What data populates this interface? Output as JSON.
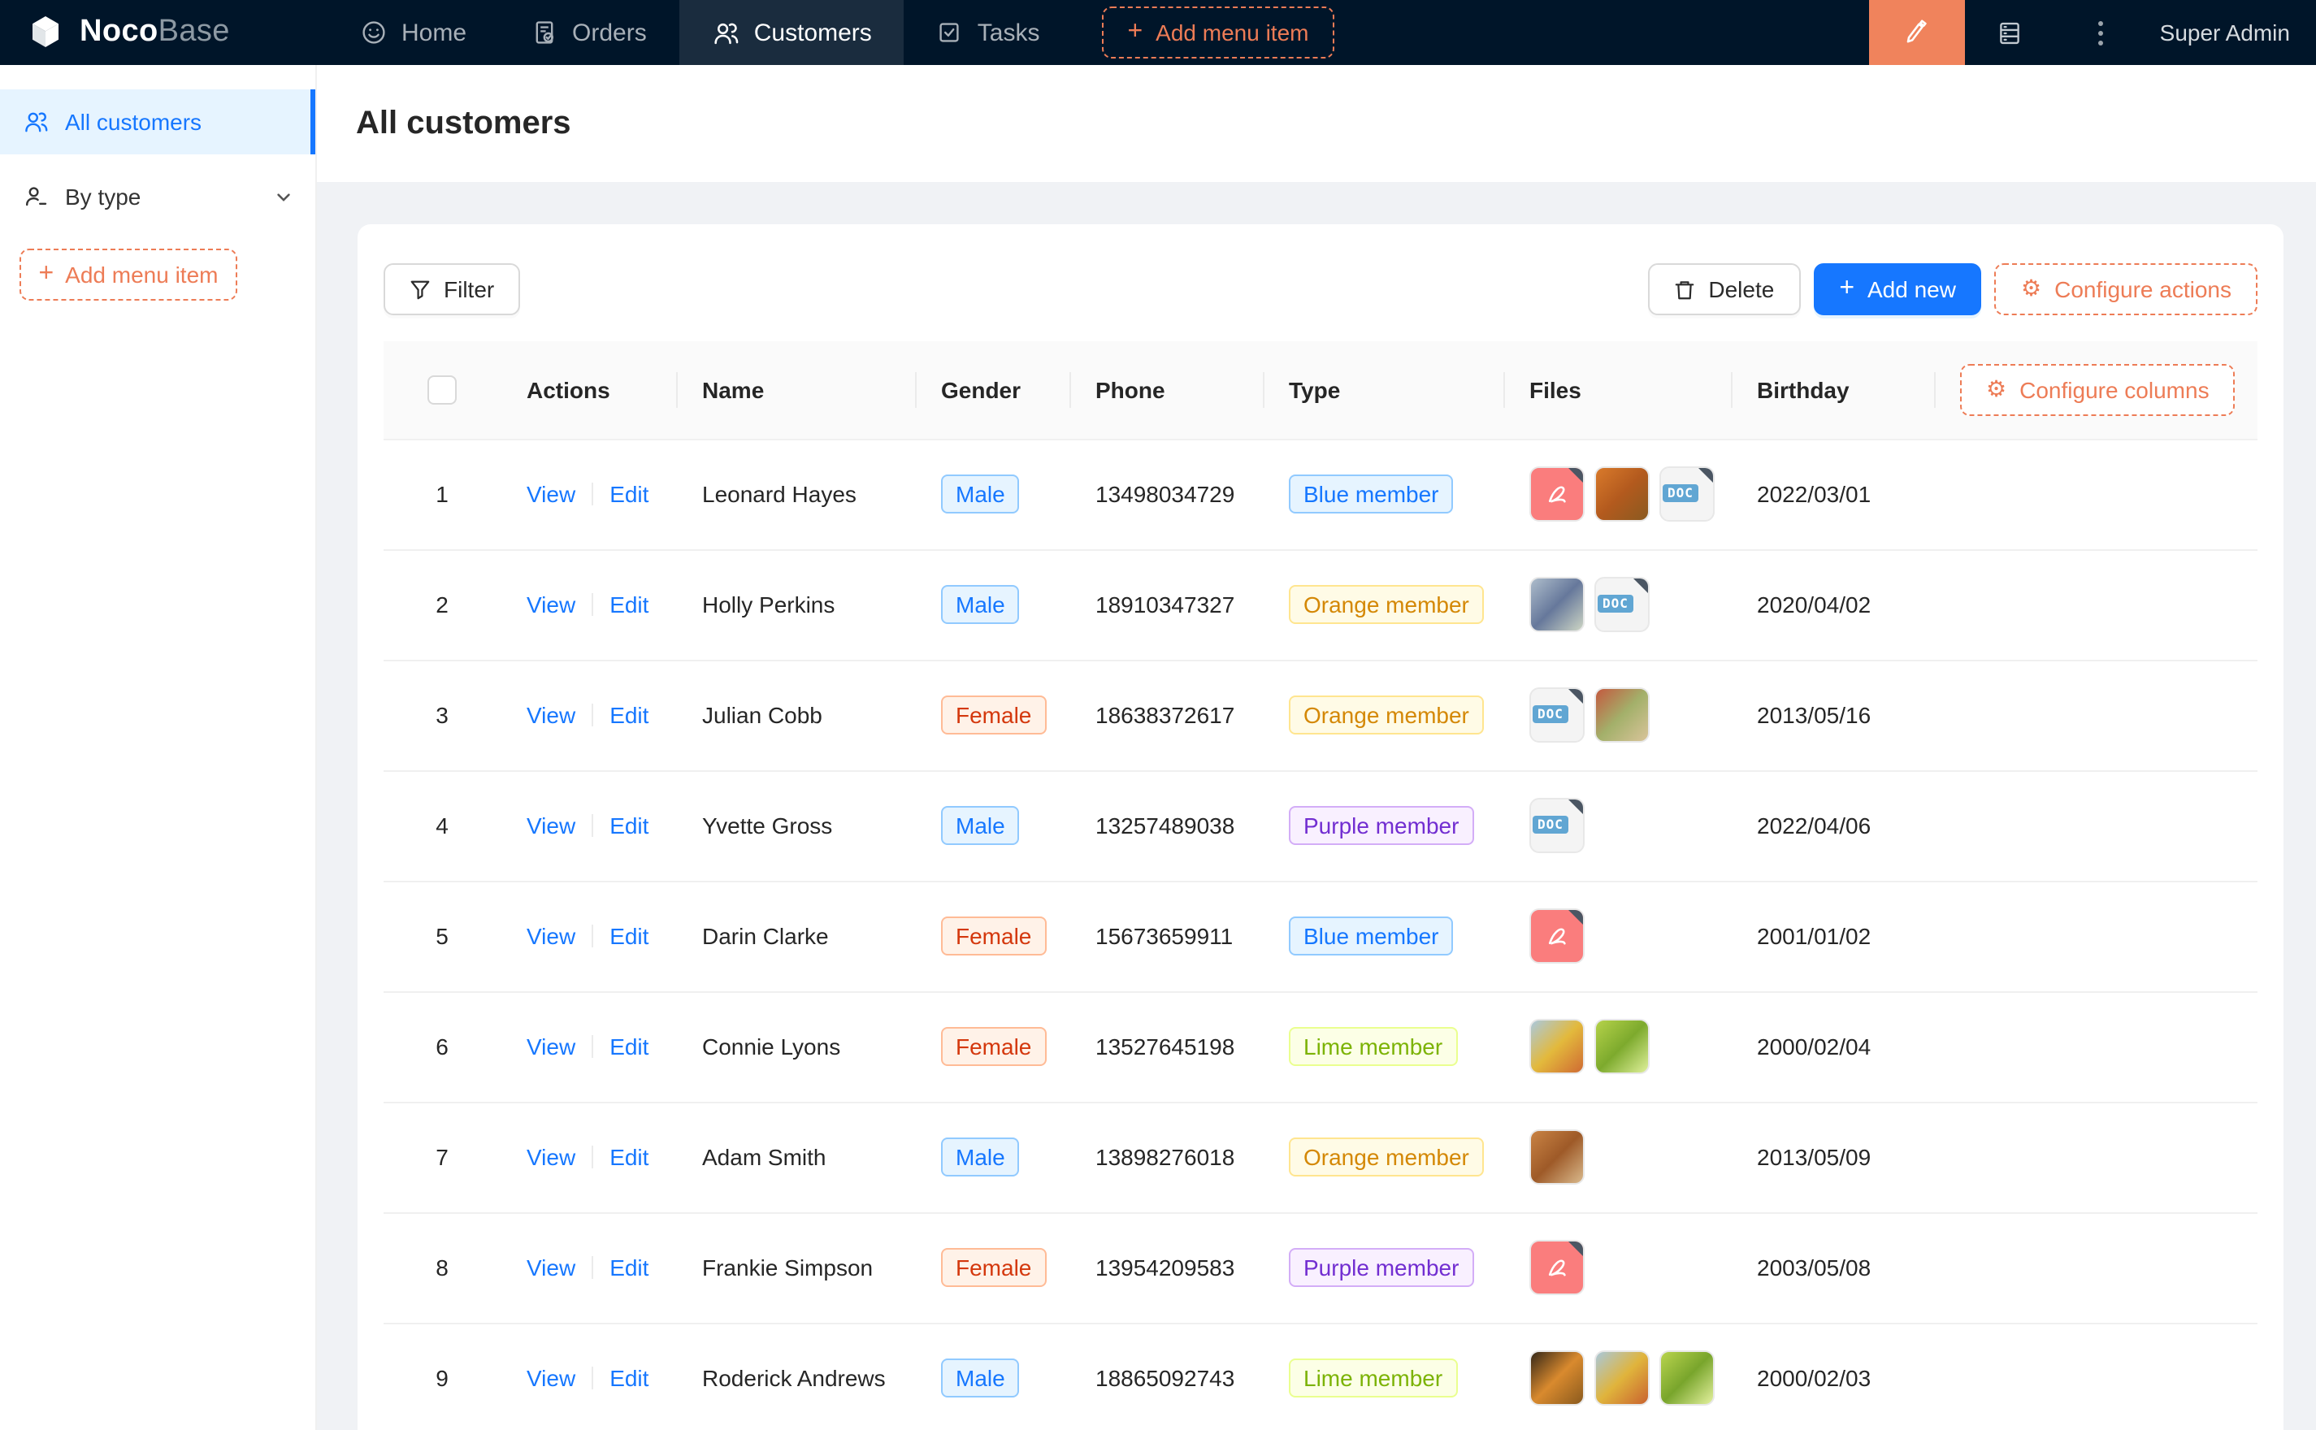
{
  "topbar": {
    "logo_noco": "Noco",
    "logo_base": "Base",
    "nav": [
      {
        "label": "Home",
        "icon": "smile-icon",
        "active": false
      },
      {
        "label": "Orders",
        "icon": "orders-icon",
        "active": false
      },
      {
        "label": "Customers",
        "icon": "team-icon",
        "active": true
      },
      {
        "label": "Tasks",
        "icon": "check-square-icon",
        "active": false
      }
    ],
    "add_menu_item_label": "Add menu item",
    "user": "Super Admin"
  },
  "sidebar": {
    "items": [
      {
        "label": "All customers",
        "icon": "team-icon",
        "active": true
      },
      {
        "label": "By type",
        "icon": "user-group-icon",
        "active": false
      }
    ],
    "add_menu_item_label": "Add menu item"
  },
  "page": {
    "title": "All customers"
  },
  "toolbar": {
    "filter_label": "Filter",
    "delete_label": "Delete",
    "add_new_label": "Add new",
    "configure_actions_label": "Configure actions"
  },
  "table": {
    "columns": [
      "Actions",
      "Name",
      "Gender",
      "Phone",
      "Type",
      "Files",
      "Birthday"
    ],
    "configure_columns_label": "Configure columns",
    "view_label": "View",
    "edit_label": "Edit",
    "rows": [
      {
        "index": "1",
        "name": "Leonard Hayes",
        "gender": "Male",
        "gender_color": "blue",
        "phone": "13498034729",
        "type": "Blue member",
        "type_color": "blue",
        "birthday": "2022/03/01",
        "files": [
          {
            "kind": "pdf"
          },
          {
            "kind": "image",
            "colors": [
              "#d97a2b",
              "#b35a1e",
              "#8a5a20"
            ]
          },
          {
            "kind": "doc"
          }
        ]
      },
      {
        "index": "2",
        "name": "Holly Perkins",
        "gender": "Male",
        "gender_color": "blue",
        "phone": "18910347327",
        "type": "Orange member",
        "type_color": "gold",
        "birthday": "2020/04/02",
        "files": [
          {
            "kind": "image",
            "colors": [
              "#aebdcb",
              "#66789b",
              "#cdd5c4"
            ]
          },
          {
            "kind": "doc"
          }
        ]
      },
      {
        "index": "3",
        "name": "Julian Cobb",
        "gender": "Female",
        "gender_color": "volcano",
        "phone": "18638372617",
        "type": "Orange member",
        "type_color": "gold",
        "birthday": "2013/05/16",
        "files": [
          {
            "kind": "doc"
          },
          {
            "kind": "image",
            "colors": [
              "#c4593f",
              "#a3b06a",
              "#d9c49a"
            ]
          }
        ]
      },
      {
        "index": "4",
        "name": "Yvette Gross",
        "gender": "Male",
        "gender_color": "blue",
        "phone": "13257489038",
        "type": "Purple member",
        "type_color": "purple",
        "birthday": "2022/04/06",
        "files": [
          {
            "kind": "doc"
          }
        ]
      },
      {
        "index": "5",
        "name": "Darin Clarke",
        "gender": "Female",
        "gender_color": "volcano",
        "phone": "15673659911",
        "type": "Blue member",
        "type_color": "blue",
        "birthday": "2001/01/02",
        "files": [
          {
            "kind": "pdf"
          }
        ]
      },
      {
        "index": "6",
        "name": "Connie Lyons",
        "gender": "Female",
        "gender_color": "volcano",
        "phone": "13527645198",
        "type": "Lime member",
        "type_color": "lime",
        "birthday": "2000/02/04",
        "files": [
          {
            "kind": "image",
            "colors": [
              "#aac9de",
              "#e3b93c",
              "#cf6a33"
            ]
          },
          {
            "kind": "image",
            "colors": [
              "#b5d24a",
              "#7daa2d",
              "#dff09a"
            ]
          }
        ]
      },
      {
        "index": "7",
        "name": "Adam Smith",
        "gender": "Male",
        "gender_color": "blue",
        "phone": "13898276018",
        "type": "Orange member",
        "type_color": "gold",
        "birthday": "2013/05/09",
        "files": [
          {
            "kind": "image",
            "colors": [
              "#c98344",
              "#9e5a28",
              "#d9b98c"
            ]
          }
        ]
      },
      {
        "index": "8",
        "name": "Frankie Simpson",
        "gender": "Female",
        "gender_color": "volcano",
        "phone": "13954209583",
        "type": "Purple member",
        "type_color": "purple",
        "birthday": "2003/05/08",
        "files": [
          {
            "kind": "pdf"
          }
        ]
      },
      {
        "index": "9",
        "name": "Roderick Andrews",
        "gender": "Male",
        "gender_color": "blue",
        "phone": "18865092743",
        "type": "Lime member",
        "type_color": "lime",
        "birthday": "2000/02/03",
        "files": [
          {
            "kind": "image",
            "colors": [
              "#342718",
              "#d98a2e",
              "#8a5a1e"
            ]
          },
          {
            "kind": "image",
            "colors": [
              "#a9c8da",
              "#e0b43c",
              "#c9622f"
            ]
          },
          {
            "kind": "image",
            "colors": [
              "#b9d44e",
              "#79a52c",
              "#e4f19e"
            ]
          }
        ]
      }
    ]
  },
  "assets": {
    "doc_badge": "DOC"
  },
  "colors": {
    "accent_orange": "#ED7C56",
    "primary_blue": "#1677ff",
    "topbar_bg": "#001529",
    "selected_menu_bg": "#e6f4ff"
  }
}
